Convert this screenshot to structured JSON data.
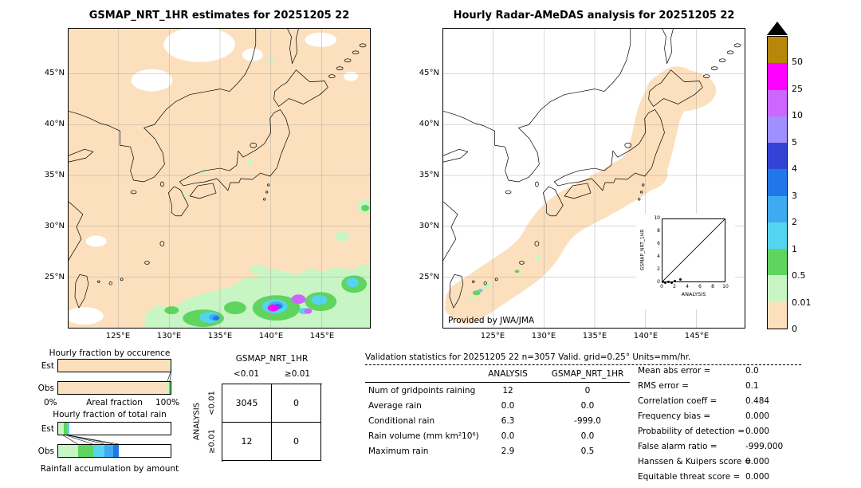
{
  "left_map": {
    "title": "GSMAP_NRT_1HR estimates for 20251205 22",
    "lat_labels": [
      "45°N",
      "40°N",
      "35°N",
      "30°N",
      "25°N"
    ],
    "lon_labels": [
      "125°E",
      "130°E",
      "135°E",
      "140°E",
      "145°E"
    ]
  },
  "right_map": {
    "title": "Hourly Radar-AMeDAS analysis for 20251205 22",
    "lat_labels": [
      "45°N",
      "40°N",
      "35°N",
      "30°N",
      "25°N"
    ],
    "lon_labels": [
      "125°E",
      "130°E",
      "135°E",
      "140°E",
      "145°E"
    ],
    "credit": "Provided by JWA/JMA",
    "inset": {
      "ylabel": "GSMAP_NRT_1HR",
      "xlabel": "ANALYSIS",
      "x_ticks": [
        "0",
        "2",
        "4",
        "6",
        "8",
        "10"
      ],
      "y_ticks": [
        "0",
        "2",
        "4",
        "6",
        "8",
        "10"
      ],
      "points": [
        [
          0.2,
          0.05
        ],
        [
          0.6,
          0.0
        ],
        [
          1.0,
          0.1
        ],
        [
          1.5,
          0.0
        ],
        [
          2.0,
          0.15
        ],
        [
          2.9,
          0.5
        ]
      ]
    }
  },
  "colorbar": {
    "labels": [
      "50",
      "25",
      "10",
      "5",
      "4",
      "3",
      "2",
      "1",
      "0.5",
      "0.01",
      "0"
    ],
    "colors": [
      "#b8860b",
      "#ff00ff",
      "#cc66ff",
      "#9f8fff",
      "#3344d4",
      "#2277e8",
      "#3faaf0",
      "#55d4f0",
      "#5fd45f",
      "#c8f5c4",
      "#fce0bd"
    ],
    "overflow_color": "#000000"
  },
  "occurrence_chart": {
    "title": "Hourly fraction by occurence",
    "rows": [
      {
        "label": "Est",
        "segments": [
          {
            "color": "#fce0bd",
            "pct": 99.2
          },
          {
            "color": "#c8f5c4",
            "pct": 0.8
          }
        ]
      },
      {
        "label": "Obs",
        "segments": [
          {
            "color": "#fce0bd",
            "pct": 96.5
          },
          {
            "color": "#c8f5c4",
            "pct": 2.0
          },
          {
            "color": "#5fd45f",
            "pct": 1.5
          }
        ]
      }
    ],
    "axis_left": "0%",
    "axis_label": "Areal fraction",
    "axis_right": "100%"
  },
  "totalrain_chart": {
    "title": "Hourly fraction of total rain",
    "rows": [
      {
        "label": "Est",
        "segments": [
          {
            "color": "#c8f5c4",
            "pct": 5
          },
          {
            "color": "#5fd45f",
            "pct": 3
          },
          {
            "color": "#55d4f0",
            "pct": 2
          },
          {
            "color": "#ffffff",
            "pct": 90
          }
        ]
      },
      {
        "label": "Obs",
        "segments": [
          {
            "color": "#c8f5c4",
            "pct": 18
          },
          {
            "color": "#5fd45f",
            "pct": 13
          },
          {
            "color": "#55d4f0",
            "pct": 10
          },
          {
            "color": "#3faaf0",
            "pct": 8
          },
          {
            "color": "#2277e8",
            "pct": 5
          },
          {
            "color": "#ffffff",
            "pct": 46
          }
        ]
      }
    ],
    "footer": "Rainfall accumulation by amount"
  },
  "contingency": {
    "title": "GSMAP_NRT_1HR",
    "col_headers": [
      "<0.01",
      "≥0.01"
    ],
    "row_axis": "ANALYSIS",
    "row_headers": [
      "<0.01",
      "≥0.01"
    ],
    "cells": [
      [
        "3045",
        "0"
      ],
      [
        "12",
        "0"
      ]
    ]
  },
  "stats": {
    "title": "Validation statistics for 20251205 22  n=3057 Valid. grid=0.25° Units=mm/hr.",
    "col_headers": [
      "ANALYSIS",
      "GSMAP_NRT_1HR"
    ],
    "rows": [
      {
        "label": "Num of gridpoints raining",
        "analysis": "12",
        "gsmap": "0"
      },
      {
        "label": "Average rain",
        "analysis": "0.0",
        "gsmap": "0.0"
      },
      {
        "label": "Conditional rain",
        "analysis": "6.3",
        "gsmap": "-999.0"
      },
      {
        "label": "Rain volume (mm km²10⁶)",
        "analysis": "0.0",
        "gsmap": "0.0"
      },
      {
        "label": "Maximum rain",
        "analysis": "2.9",
        "gsmap": "0.5"
      }
    ],
    "side": [
      {
        "label": "Mean abs error =",
        "value": "0.0"
      },
      {
        "label": "RMS error =",
        "value": "0.1"
      },
      {
        "label": "Correlation coeff =",
        "value": "0.484"
      },
      {
        "label": "Frequency bias =",
        "value": "0.000"
      },
      {
        "label": "Probability of detection =",
        "value": "0.000"
      },
      {
        "label": "False alarm ratio =",
        "value": "-999.000"
      },
      {
        "label": "Hanssen & Kuipers score =",
        "value": "0.000"
      },
      {
        "label": "Equitable threat score =",
        "value": "0.000"
      }
    ]
  },
  "chart_data": [
    {
      "type": "heatmap",
      "title": "GSMAP_NRT_1HR estimates for 20251205 22",
      "x_ticks": [
        "125°E",
        "130°E",
        "135°E",
        "140°E",
        "145°E"
      ],
      "y_ticks": [
        "45°N",
        "40°N",
        "35°N",
        "30°N",
        "25°N"
      ],
      "units": "mm/hr",
      "colorbar_levels": [
        0,
        0.01,
        0.5,
        1,
        2,
        3,
        4,
        5,
        10,
        25,
        50
      ],
      "note": "precipitation map; rain band south of 27N with peak cells 25-50 mm/hr near 140E 22.5N"
    },
    {
      "type": "heatmap",
      "title": "Hourly Radar-AMeDAS analysis for 20251205 22",
      "x_ticks": [
        "125°E",
        "130°E",
        "135°E",
        "140°E",
        "145°E"
      ],
      "y_ticks": [
        "45°N",
        "40°N",
        "35°N",
        "30°N",
        "25°N"
      ],
      "units": "mm/hr",
      "note": "radar coverage swath along Japanese archipelago; light rain cells near Okinawa"
    },
    {
      "type": "table",
      "title": "GSMAP_NRT_1HR contingency vs ANALYSIS",
      "columns": [
        "<0.01",
        ">=0.01"
      ],
      "rows": [
        "ANALYSIS <0.01",
        "ANALYSIS >=0.01"
      ],
      "values": [
        [
          3045,
          0
        ],
        [
          12,
          0
        ]
      ]
    },
    {
      "type": "table",
      "title": "Validation statistics for 20251205 22 n=3057 Valid. grid=0.25 Units=mm/hr",
      "columns": [
        "ANALYSIS",
        "GSMAP_NRT_1HR"
      ],
      "rows": [
        [
          "Num of gridpoints raining",
          12,
          0
        ],
        [
          "Average rain",
          0.0,
          0.0
        ],
        [
          "Conditional rain",
          6.3,
          -999.0
        ],
        [
          "Rain volume (mm km2 10^6)",
          0.0,
          0.0
        ],
        [
          "Maximum rain",
          2.9,
          0.5
        ]
      ],
      "scores": {
        "mean_abs_error": 0.0,
        "rms_error": 0.1,
        "correlation_coeff": 0.484,
        "frequency_bias": 0.0,
        "probability_of_detection": 0.0,
        "false_alarm_ratio": -999.0,
        "hanssen_kuipers_score": 0.0,
        "equitable_threat_score": 0.0
      }
    },
    {
      "type": "scatter",
      "title": "GSMAP_NRT_1HR vs ANALYSIS inset",
      "xlabel": "ANALYSIS",
      "ylabel": "GSMAP_NRT_1HR",
      "xlim": [
        0,
        10
      ],
      "ylim": [
        0,
        10
      ],
      "points": [
        [
          0.2,
          0.05
        ],
        [
          0.6,
          0.0
        ],
        [
          1.0,
          0.1
        ],
        [
          1.5,
          0.0
        ],
        [
          2.0,
          0.15
        ],
        [
          2.9,
          0.5
        ]
      ]
    }
  ]
}
